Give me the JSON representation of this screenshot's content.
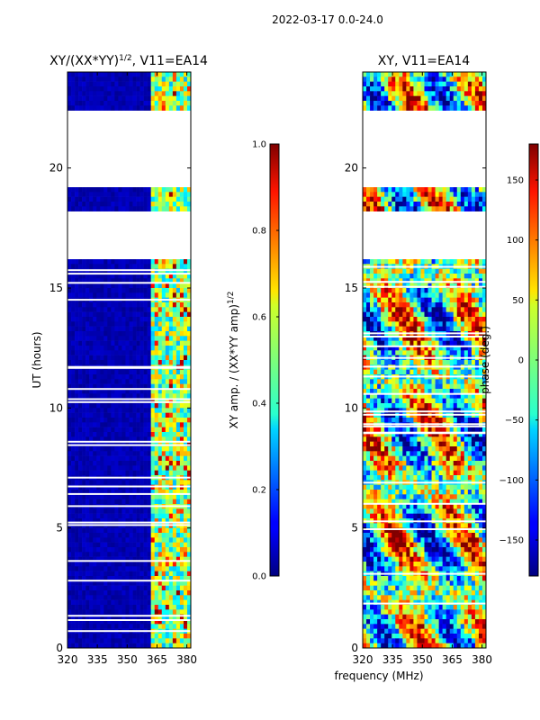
{
  "figure": {
    "suptitle": "2022-03-17 0.0-24.0",
    "shared_xlabel": "frequency (MHz)"
  },
  "chart_data": [
    {
      "type": "heatmap",
      "id": "left",
      "title": "XY/(XX*YY)",
      "title_sup": "1/2",
      "title_suffix": ", V11=EA14",
      "xlabel": "frequency (MHz)",
      "ylabel": "UT (hours)",
      "xlim": [
        320,
        382
      ],
      "ylim": [
        0,
        24
      ],
      "xticks": [
        320,
        335,
        350,
        365,
        380
      ],
      "yticks": [
        0,
        5,
        10,
        15,
        20
      ],
      "colorbar": {
        "label": "XY amp. / (XX*YY amp)",
        "label_sup": "1/2",
        "range": [
          0.0,
          1.0
        ],
        "ticks": [
          "0.0",
          "0.2",
          "0.4",
          "0.6",
          "0.8",
          "1.0"
        ],
        "tick_values": [
          0.0,
          0.2,
          0.4,
          0.6,
          0.8,
          1.0
        ]
      },
      "colormap": "jet",
      "blank_ut_ranges": [
        [
          16.2,
          18.2
        ],
        [
          19.2,
          22.3
        ]
      ]
    },
    {
      "type": "heatmap",
      "id": "right",
      "title": "XY, V11=EA14",
      "xlabel": "frequency (MHz)",
      "ylabel": "",
      "xlim": [
        320,
        382
      ],
      "ylim": [
        0,
        24
      ],
      "xticks": [
        320,
        335,
        350,
        365,
        380
      ],
      "yticks": [
        0,
        5,
        10,
        15,
        20
      ],
      "colorbar": {
        "label": "phase (deg.)",
        "range": [
          -180,
          180
        ],
        "ticks": [
          "−150",
          "−100",
          "−50",
          "0",
          "50",
          "100",
          "150"
        ],
        "tick_values": [
          -150,
          -100,
          -50,
          0,
          50,
          100,
          150
        ]
      },
      "colormap": "jet",
      "blank_ut_ranges": [
        [
          16.2,
          18.2
        ],
        [
          19.2,
          22.3
        ]
      ]
    }
  ]
}
